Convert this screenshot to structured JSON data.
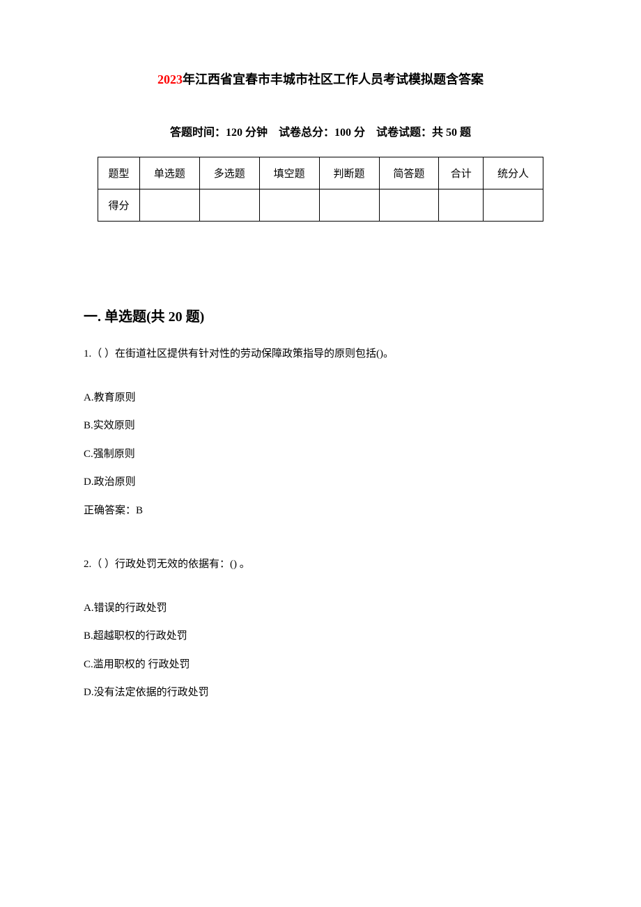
{
  "title": {
    "year": "2023",
    "suffix": "年江西省宜春市丰城市社区工作人员考试模拟题含答案",
    "year_color": "#ff0000",
    "suffix_color": "#000000",
    "title_fontsize": 18,
    "background_color": "#ffffff"
  },
  "exam_info": {
    "time_label": "答题时间：",
    "time_value": "120 分钟",
    "total_score_label": "试卷总分：",
    "total_score_value": "100 分",
    "question_count_label": "试卷试题：",
    "question_count_value": "共 50 题",
    "fontsize": 16
  },
  "score_table": {
    "border_color": "#000000",
    "background_color": "#ffffff",
    "row_labels": [
      "题型",
      "得分"
    ],
    "columns": [
      "单选题",
      "多选题",
      "填空题",
      "判断题",
      "简答题",
      "合计",
      "统分人"
    ],
    "fontsize": 15
  },
  "section": {
    "number": "一",
    "name": "单选题",
    "count": "共 20 题",
    "full_title": "一. 单选题(共 20 题)",
    "fontsize": 20
  },
  "questions": [
    {
      "number": "1.",
      "prefix": "（ ）",
      "text": "在街道社区提供有针对性的劳动保障政策指导的原则包括()。",
      "options": [
        {
          "label": "A.",
          "text": "教育原则"
        },
        {
          "label": "B.",
          "text": "实效原则"
        },
        {
          "label": "C.",
          "text": "强制原则"
        },
        {
          "label": "D.",
          "text": "政治原则"
        }
      ],
      "answer_label": "正确答案：",
      "answer_value": "B"
    },
    {
      "number": "2.",
      "prefix": "（ ）",
      "text": "行政处罚无效的依据有：() 。",
      "options": [
        {
          "label": "A.",
          "text": "错误的行政处罚"
        },
        {
          "label": "B.",
          "text": "超越职权的行政处罚"
        },
        {
          "label": "C.",
          "text": "滥用职权的  行政处罚"
        },
        {
          "label": "D.",
          "text": "没有法定依据的行政处罚"
        }
      ],
      "answer_label": "",
      "answer_value": ""
    }
  ],
  "text_color": "#000000",
  "body_fontsize": 15
}
